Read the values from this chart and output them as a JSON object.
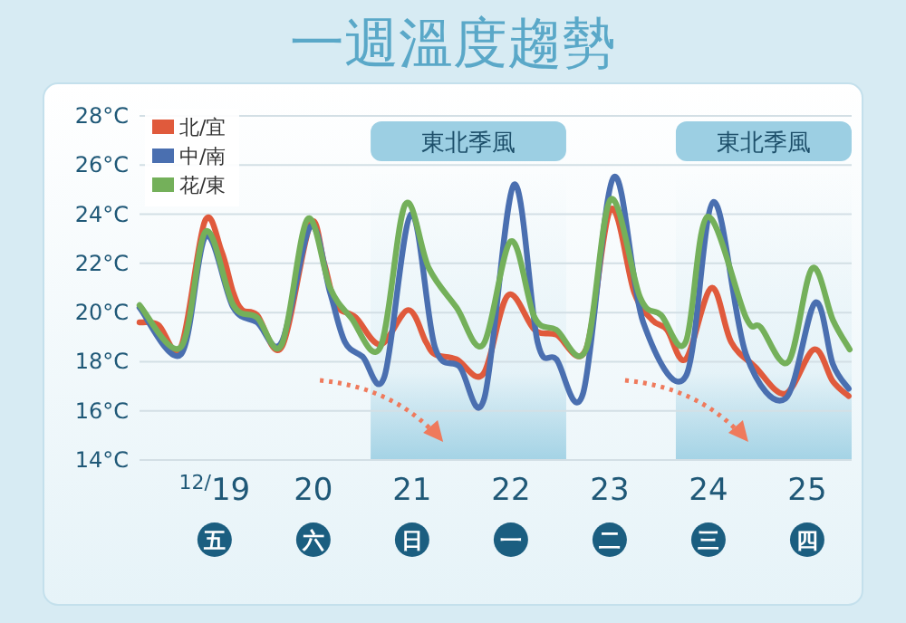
{
  "chart_data": {
    "type": "line",
    "title": "一週溫度趨勢",
    "xlim": [
      18.24,
      25.45
    ],
    "xticks": [
      {
        "value": 19,
        "label": "$^{12/}$19"
      },
      20,
      21,
      22,
      23,
      24,
      25
    ],
    "ylim": [
      14,
      28
    ],
    "yticks": [
      {
        "value": 14,
        "label": "14°C"
      },
      {
        "value": 16,
        "label": "16°C"
      },
      {
        "value": 18,
        "label": "18°C"
      },
      {
        "value": 20,
        "label": "20°C"
      },
      {
        "value": 22,
        "label": "22°C"
      },
      {
        "value": 24,
        "label": "24°C"
      },
      {
        "value": 26,
        "label": "26°C"
      },
      {
        "value": 28,
        "label": "28°C"
      }
    ],
    "grid": "y",
    "legend": "top left",
    "marker": "none",
    "line_style": "solid",
    "series": [
      {
        "name": "北/宜",
        "color": "#e05a3c",
        "x": [
          18.24,
          18.43,
          18.66,
          18.9,
          19.07,
          19.19,
          19.28,
          19.43,
          19.68,
          19.97,
          20.11,
          20.23,
          20.43,
          20.68,
          20.96,
          21.14,
          21.23,
          21.45,
          21.72,
          21.97,
          22.24,
          22.46,
          22.76,
          23.01,
          23.25,
          23.43,
          23.58,
          23.77,
          24.03,
          24.23,
          24.47,
          24.78,
          25.07,
          25.26,
          25.42
        ],
        "values": [
          19.6,
          19.5,
          18.6,
          23.7,
          22.5,
          20.8,
          20.1,
          19.9,
          18.6,
          23.6,
          22.0,
          20.3,
          19.8,
          18.7,
          20.1,
          18.8,
          18.3,
          18.1,
          17.5,
          20.7,
          19.3,
          19.1,
          18.5,
          24.2,
          20.8,
          19.7,
          19.3,
          18.1,
          21.0,
          18.8,
          17.8,
          16.7,
          18.5,
          17.2,
          16.6
        ]
      },
      {
        "name": "中/南",
        "color": "#4a6fb0",
        "x": [
          18.24,
          18.66,
          18.91,
          19.19,
          19.43,
          19.68,
          19.97,
          20.17,
          20.32,
          20.5,
          20.72,
          20.99,
          21.23,
          21.48,
          21.73,
          22.03,
          22.27,
          22.46,
          22.73,
          23.04,
          23.34,
          23.77,
          24.05,
          24.38,
          24.78,
          25.08,
          25.26,
          25.42
        ],
        "values": [
          20.2,
          18.3,
          23.1,
          20.2,
          19.6,
          18.8,
          23.5,
          20.8,
          18.8,
          18.2,
          17.4,
          24.0,
          18.6,
          17.8,
          16.5,
          25.2,
          18.8,
          18.1,
          16.7,
          25.5,
          19.6,
          17.4,
          24.5,
          18.3,
          16.5,
          20.4,
          17.9,
          16.9
        ]
      },
      {
        "name": "花/東",
        "color": "#74b05a",
        "x": [
          18.24,
          18.66,
          18.91,
          19.19,
          19.43,
          19.68,
          19.94,
          20.17,
          20.38,
          20.68,
          20.93,
          21.17,
          21.45,
          21.72,
          22.0,
          22.24,
          22.46,
          22.76,
          23.01,
          23.31,
          23.52,
          23.77,
          23.99,
          24.38,
          24.53,
          24.81,
          25.05,
          25.26,
          25.43
        ],
        "values": [
          20.3,
          18.6,
          23.3,
          20.3,
          19.8,
          18.7,
          23.8,
          21.0,
          19.8,
          18.6,
          24.4,
          21.8,
          20.2,
          18.7,
          22.9,
          19.8,
          19.3,
          18.5,
          24.6,
          20.6,
          19.9,
          18.8,
          23.9,
          19.8,
          19.4,
          18.0,
          21.8,
          19.7,
          18.5
        ]
      }
    ],
    "bands": [
      {
        "axis": "x",
        "from": 20.58,
        "to": 22.56,
        "label": "東北季風",
        "color": "#9ccfe3"
      },
      {
        "axis": "x",
        "from": 23.67,
        "to": 25.45,
        "label": "東北季風",
        "color": "#9ccfe3"
      }
    ],
    "annotations": [
      "五",
      "六",
      "日",
      "一",
      "二",
      "三",
      "四"
    ]
  }
}
